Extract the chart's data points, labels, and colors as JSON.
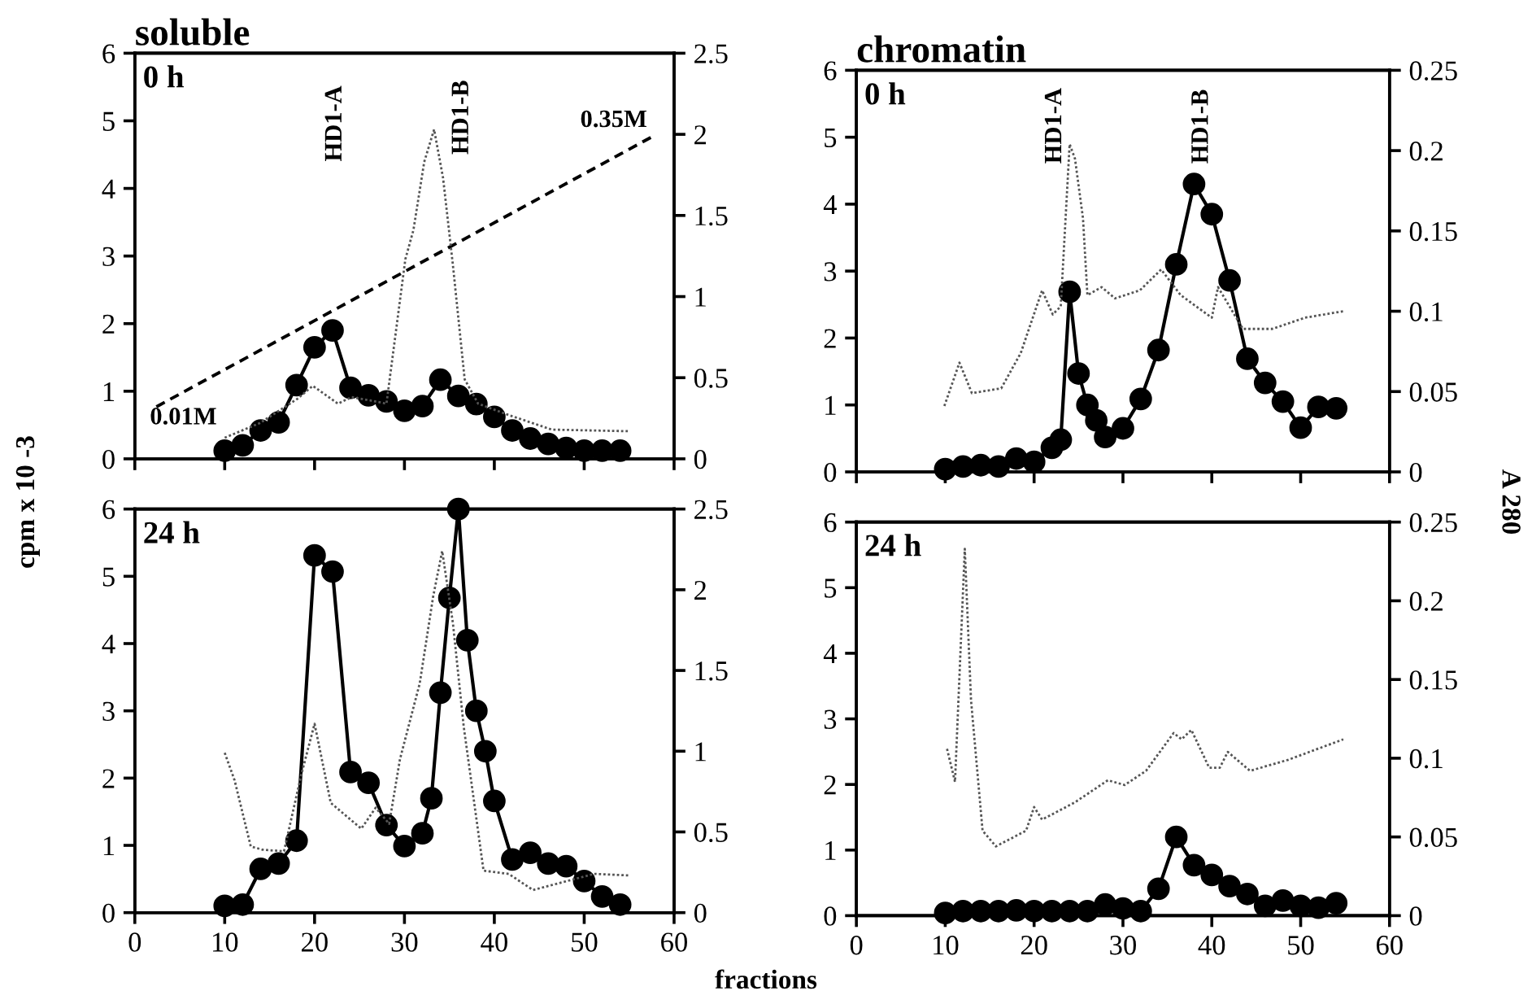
{
  "chart_data": [
    {
      "type": "line",
      "title": "soluble",
      "ylabel": "cpm x 10 -3",
      "xlim": [
        0,
        60
      ],
      "xticks": [
        0,
        10,
        20,
        30,
        40,
        50,
        60
      ],
      "ylim": [
        0,
        6
      ],
      "yticks": [
        0,
        1,
        2,
        3,
        4,
        5,
        6
      ],
      "y2lim": [
        0,
        2.5
      ],
      "y2ticks": [
        0,
        0.5,
        1,
        1.5,
        2,
        2.5
      ],
      "tick_labels": "y",
      "annotations": [
        "0 h",
        "HD1-A",
        "HD1-B",
        "0.01M",
        "0.35M"
      ],
      "series": [
        {
          "color": "#000000",
          "marker": "circle",
          "line_style": "solid",
          "x": [
            10,
            12,
            14,
            16,
            18,
            20,
            22,
            24,
            26,
            28,
            30,
            32,
            34,
            36,
            38,
            40,
            42,
            44,
            46,
            48,
            50,
            52,
            54
          ],
          "values": [
            0.12,
            0.2,
            0.42,
            0.54,
            1.09,
            1.65,
            1.9,
            1.05,
            0.94,
            0.85,
            0.71,
            0.78,
            1.17,
            0.93,
            0.81,
            0.62,
            0.42,
            0.3,
            0.22,
            0.16,
            0.12,
            0.12,
            0.12
          ]
        },
        {
          "color": "#555555",
          "marker": "none",
          "line_style": "dotted",
          "axis": "y2",
          "x": [
            10,
            13.9,
            18.1,
            19.8,
            22.6,
            24.1,
            26.2,
            28,
            30.1,
            31,
            32.2,
            33.3,
            34.3,
            35.4,
            36.7,
            38.2,
            41.6,
            46.4,
            55.1
          ],
          "values": [
            0.13,
            0.22,
            0.37,
            0.45,
            0.34,
            0.38,
            0.36,
            0.34,
            1.23,
            1.41,
            1.83,
            2.03,
            1.73,
            1.19,
            0.49,
            0.34,
            0.27,
            0.18,
            0.17
          ]
        },
        {
          "color": "#000000",
          "marker": "none",
          "line_style": "dashed",
          "x": [
            2.4,
            57.5
          ],
          "values": [
            0.77,
            4.76
          ]
        }
      ]
    },
    {
      "type": "line",
      "title": "chromatin",
      "y2label": "A 280",
      "xlim": [
        0,
        60
      ],
      "xticks": [
        0,
        10,
        20,
        30,
        40,
        50,
        60
      ],
      "ylim": [
        0,
        6
      ],
      "yticks": [
        0,
        1,
        2,
        3,
        4,
        5,
        6
      ],
      "y2lim": [
        0,
        0.25
      ],
      "y2ticks": [
        0,
        0.05,
        0.1,
        0.15,
        0.2,
        0.25
      ],
      "tick_labels": "y",
      "annotations": [
        "0 h",
        "HD1-A",
        "HD1-B"
      ],
      "series": [
        {
          "color": "#000000",
          "marker": "circle",
          "line_style": "solid",
          "x": [
            10,
            12,
            14,
            16,
            18,
            20,
            22,
            23,
            24,
            25,
            26,
            27,
            28,
            30,
            32,
            34,
            36,
            38,
            40,
            42,
            44,
            46,
            48,
            50,
            52,
            54
          ],
          "values": [
            0.04,
            0.08,
            0.1,
            0.08,
            0.2,
            0.15,
            0.36,
            0.48,
            2.69,
            1.47,
            1.0,
            0.77,
            0.52,
            0.65,
            1.09,
            1.82,
            3.1,
            4.3,
            3.85,
            2.86,
            1.69,
            1.33,
            1.05,
            0.66,
            0.97,
            0.95
          ]
        },
        {
          "color": "#555555",
          "marker": "none",
          "line_style": "dotted",
          "axis": "y2",
          "x": [
            9.9,
            11.6,
            13,
            16.3,
            18.5,
            20.9,
            22.1,
            23,
            24,
            24.6,
            25.5,
            26,
            27.6,
            29.1,
            31.9,
            34.3,
            36.5,
            40,
            40.7,
            43.5,
            46.8,
            50.5,
            54.8
          ],
          "values": [
            0.041,
            0.068,
            0.049,
            0.052,
            0.074,
            0.113,
            0.098,
            0.103,
            0.204,
            0.195,
            0.158,
            0.11,
            0.115,
            0.108,
            0.113,
            0.126,
            0.11,
            0.096,
            0.115,
            0.089,
            0.089,
            0.096,
            0.1
          ]
        }
      ]
    },
    {
      "type": "line",
      "xlabel": "fractions",
      "xlim": [
        0,
        60
      ],
      "xticks": [
        0,
        10,
        20,
        30,
        40,
        50,
        60
      ],
      "ylim": [
        0,
        6
      ],
      "yticks": [
        0,
        1,
        2,
        3,
        4,
        5,
        6
      ],
      "y2lim": [
        0,
        2.5
      ],
      "y2ticks": [
        0,
        0.5,
        1,
        1.5,
        2,
        2.5
      ],
      "annotations": [
        "24 h"
      ],
      "series": [
        {
          "color": "#000000",
          "marker": "circle",
          "line_style": "solid",
          "x": [
            10,
            12,
            14,
            16,
            18,
            20,
            22,
            24,
            26,
            28,
            30,
            32,
            33,
            34,
            35,
            36,
            37,
            38,
            39,
            40,
            42,
            44,
            46,
            48,
            50,
            52,
            54
          ],
          "values": [
            0.1,
            0.12,
            0.65,
            0.73,
            1.07,
            5.31,
            5.07,
            2.09,
            1.93,
            1.3,
            0.99,
            1.18,
            1.7,
            3.27,
            4.68,
            6.0,
            4.05,
            3.0,
            2.4,
            1.66,
            0.79,
            0.89,
            0.73,
            0.69,
            0.47,
            0.24,
            0.12
          ]
        },
        {
          "color": "#555555",
          "marker": "none",
          "line_style": "dotted",
          "axis": "y2",
          "x": [
            10,
            11.1,
            12.9,
            14.2,
            16.6,
            18.5,
            20,
            21.8,
            25.2,
            26.8,
            28.3,
            29.5,
            31.7,
            33.2,
            34.2,
            35.4,
            36.6,
            38.8,
            41.6,
            44.3,
            51.1,
            55.1
          ],
          "values": [
            0.99,
            0.82,
            0.41,
            0.39,
            0.38,
            0.85,
            1.17,
            0.68,
            0.52,
            0.65,
            0.55,
            0.95,
            1.42,
            1.96,
            2.24,
            1.79,
            1.15,
            0.26,
            0.24,
            0.14,
            0.24,
            0.23
          ]
        }
      ]
    },
    {
      "type": "line",
      "xlim": [
        0,
        60
      ],
      "xticks": [
        0,
        10,
        20,
        30,
        40,
        50,
        60
      ],
      "ylim": [
        0,
        6
      ],
      "yticks": [
        0,
        1,
        2,
        3,
        4,
        5,
        6
      ],
      "y2lim": [
        0,
        0.25
      ],
      "y2ticks": [
        0,
        0.05,
        0.1,
        0.15,
        0.2,
        0.25
      ],
      "annotations": [
        "24 h"
      ],
      "series": [
        {
          "color": "#000000",
          "marker": "circle",
          "line_style": "solid",
          "x": [
            10,
            12,
            14,
            16,
            18,
            20,
            22,
            24,
            26,
            28,
            30,
            32,
            34,
            36,
            38,
            40,
            42,
            44,
            46,
            48,
            50,
            52,
            54
          ],
          "values": [
            0.04,
            0.07,
            0.07,
            0.07,
            0.08,
            0.07,
            0.07,
            0.07,
            0.07,
            0.17,
            0.11,
            0.07,
            0.41,
            1.2,
            0.77,
            0.62,
            0.45,
            0.33,
            0.15,
            0.23,
            0.15,
            0.12,
            0.19
          ]
        },
        {
          "color": "#555555",
          "marker": "none",
          "line_style": "dotted",
          "axis": "y2",
          "x": [
            10.2,
            11.1,
            12.2,
            12.9,
            14.2,
            15.7,
            19.1,
            20,
            20.9,
            24.6,
            28.3,
            30.2,
            32.6,
            35.7,
            36.6,
            37.7,
            39.7,
            40.9,
            41.8,
            44.3,
            48.6,
            54.8
          ],
          "values": [
            0.106,
            0.085,
            0.233,
            0.137,
            0.054,
            0.044,
            0.054,
            0.069,
            0.061,
            0.072,
            0.086,
            0.083,
            0.092,
            0.116,
            0.112,
            0.118,
            0.094,
            0.094,
            0.104,
            0.092,
            0.099,
            0.112
          ]
        }
      ]
    }
  ]
}
